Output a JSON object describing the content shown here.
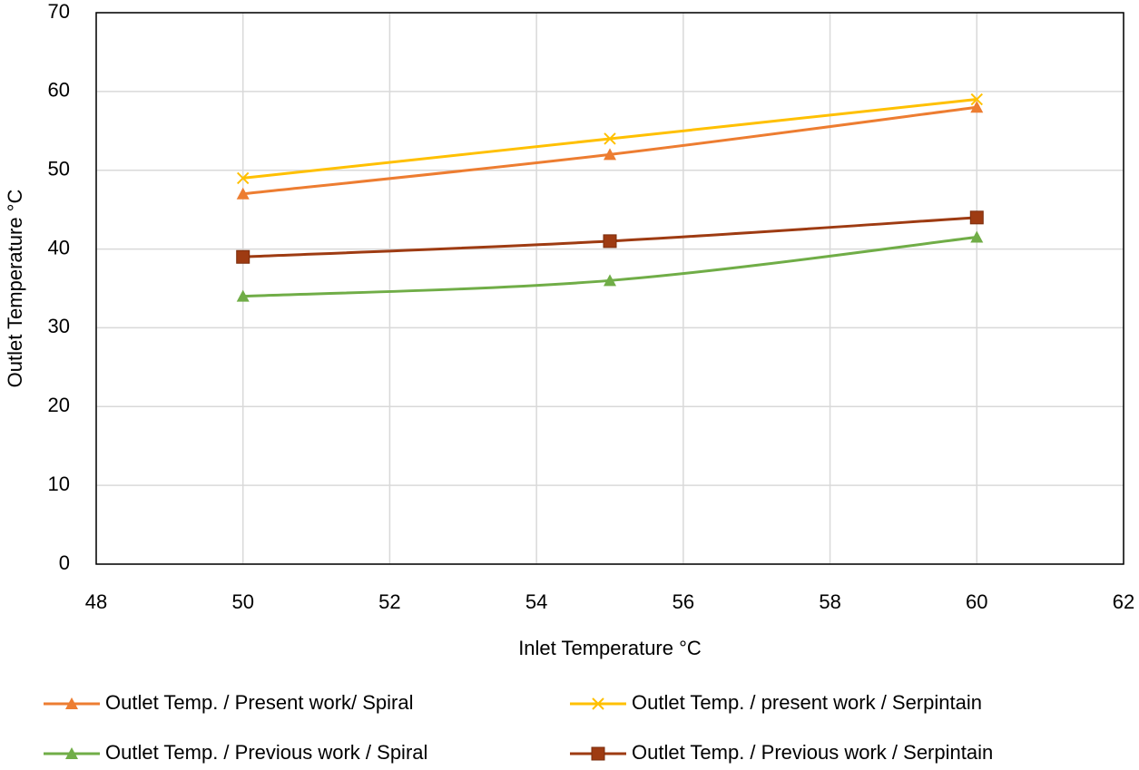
{
  "chart_data": {
    "type": "line",
    "x_label": "Inlet Temperature °C",
    "y_label": "Outlet Temperature °C",
    "x": [
      50,
      55,
      60
    ],
    "series": [
      {
        "name": "Outlet Temp. / Present work/ Spiral",
        "color": "#ed7d31",
        "marker": "triangle",
        "values": [
          47,
          52,
          58
        ]
      },
      {
        "name": "Outlet Temp. / present work / Serpintain",
        "color": "#ffc000",
        "marker": "x",
        "values": [
          49,
          54,
          59
        ]
      },
      {
        "name": "Outlet Temp. / Previous work / Spiral",
        "color": "#70ad47",
        "marker": "triangle",
        "values": [
          34,
          36,
          41.5
        ]
      },
      {
        "name": "Outlet Temp. / Previous work / Serpintain",
        "color": "#9e3b12",
        "marker": "square",
        "values": [
          39,
          41,
          44
        ]
      }
    ],
    "xlim": [
      48,
      62
    ],
    "xticks": [
      48,
      50,
      52,
      54,
      56,
      58,
      60,
      62
    ],
    "ylim": [
      0,
      70
    ],
    "yticks": [
      0,
      10,
      20,
      30,
      40,
      50,
      60,
      70
    ],
    "grid": true,
    "smooth": true,
    "legend": "bottom"
  }
}
